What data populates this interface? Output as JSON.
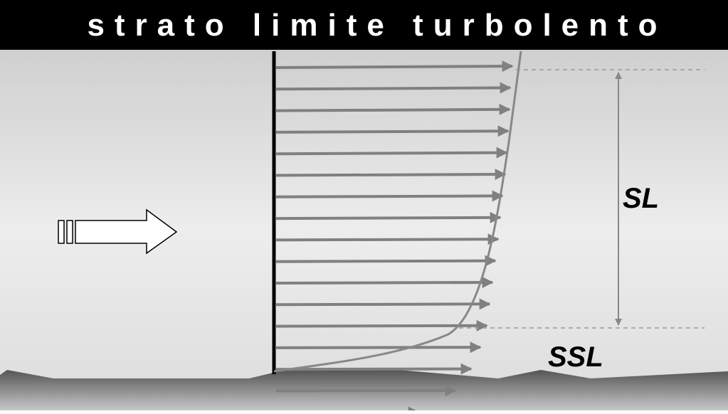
{
  "header": {
    "title": "strato limite turbolento"
  },
  "labels": {
    "sl": "SL",
    "ssl": "SSL"
  }
}
